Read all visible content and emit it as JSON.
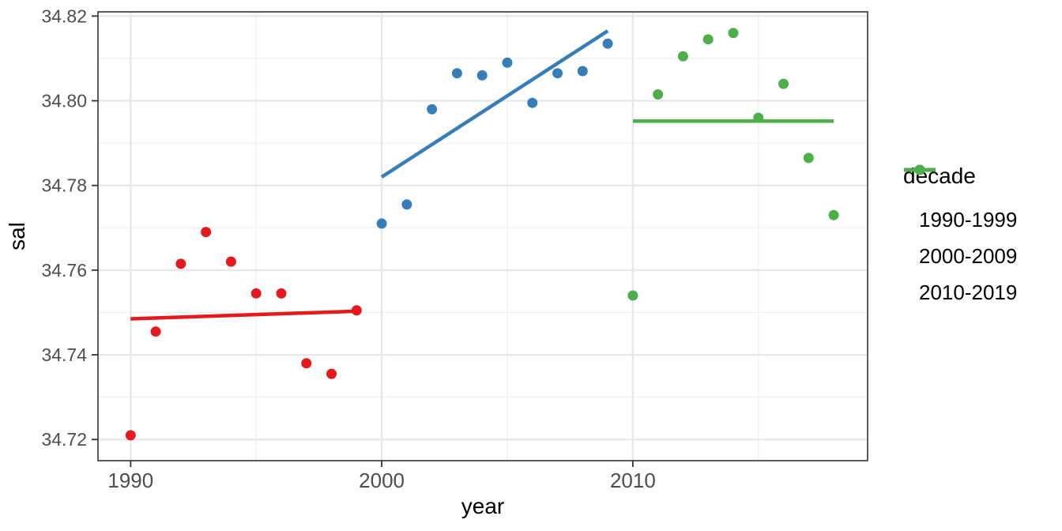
{
  "chart_data": {
    "type": "scatter",
    "title": "",
    "xlabel": "year",
    "ylabel": "sal",
    "xlim": [
      1988.7,
      2019.35
    ],
    "ylim": [
      34.715,
      34.821
    ],
    "x_ticks": [
      1990,
      2000,
      2010
    ],
    "x_tick_labels": [
      "1990",
      "2000",
      "2010"
    ],
    "x_minor_ticks": [
      1995,
      2005,
      2015
    ],
    "y_ticks": [
      34.72,
      34.74,
      34.76,
      34.78,
      34.8,
      34.82
    ],
    "y_tick_labels": [
      "34.72",
      "34.74",
      "34.76",
      "34.78",
      "34.80",
      "34.82"
    ],
    "y_minor_ticks": [
      34.73,
      34.75,
      34.77,
      34.79,
      34.81
    ],
    "grid": true,
    "point_radius": 6.5,
    "trend_line_width": 4.5,
    "legend": {
      "title": "decade",
      "position": "right"
    },
    "series": [
      {
        "name": "1990-1999",
        "color": "#E41A1C",
        "x": [
          1990,
          1991,
          1992,
          1993,
          1994,
          1995,
          1996,
          1997,
          1998,
          1999
        ],
        "y": [
          34.721,
          34.7455,
          34.7615,
          34.769,
          34.762,
          34.7545,
          34.7545,
          34.738,
          34.7355,
          34.7505
        ],
        "trend": {
          "x": [
            1990,
            1999
          ],
          "y": [
            34.7485,
            34.7503
          ]
        }
      },
      {
        "name": "2000-2009",
        "color": "#377EB8",
        "x": [
          2000,
          2001,
          2002,
          2003,
          2004,
          2005,
          2006,
          2007,
          2008,
          2009
        ],
        "y": [
          34.771,
          34.7755,
          34.798,
          34.8065,
          34.806,
          34.809,
          34.7995,
          34.8065,
          34.807,
          34.8135
        ],
        "trend": {
          "x": [
            2000,
            2009
          ],
          "y": [
            34.782,
            34.8165
          ]
        }
      },
      {
        "name": "2010-2019",
        "color": "#4DAF4A",
        "x": [
          2010,
          2011,
          2012,
          2013,
          2014,
          2015,
          2016,
          2017,
          2018
        ],
        "y": [
          34.754,
          34.8015,
          34.8105,
          34.8145,
          34.816,
          34.796,
          34.804,
          34.7865,
          34.773
        ],
        "trend": {
          "x": [
            2010,
            2018
          ],
          "y": [
            34.7952,
            34.7952
          ]
        }
      }
    ]
  },
  "style": {
    "background": "#FFFFFF",
    "panel_background": "#FFFFFF",
    "panel_border": "#333333",
    "grid_major": "#E8E8E8",
    "grid_minor": "#F1F1F1",
    "tick_mark_color": "#333333",
    "x_tick_label_color": "#4D4D4D",
    "y_tick_label_color": "#4D4D4D",
    "x_tick_font_px": 26,
    "y_tick_font_px": 23
  }
}
